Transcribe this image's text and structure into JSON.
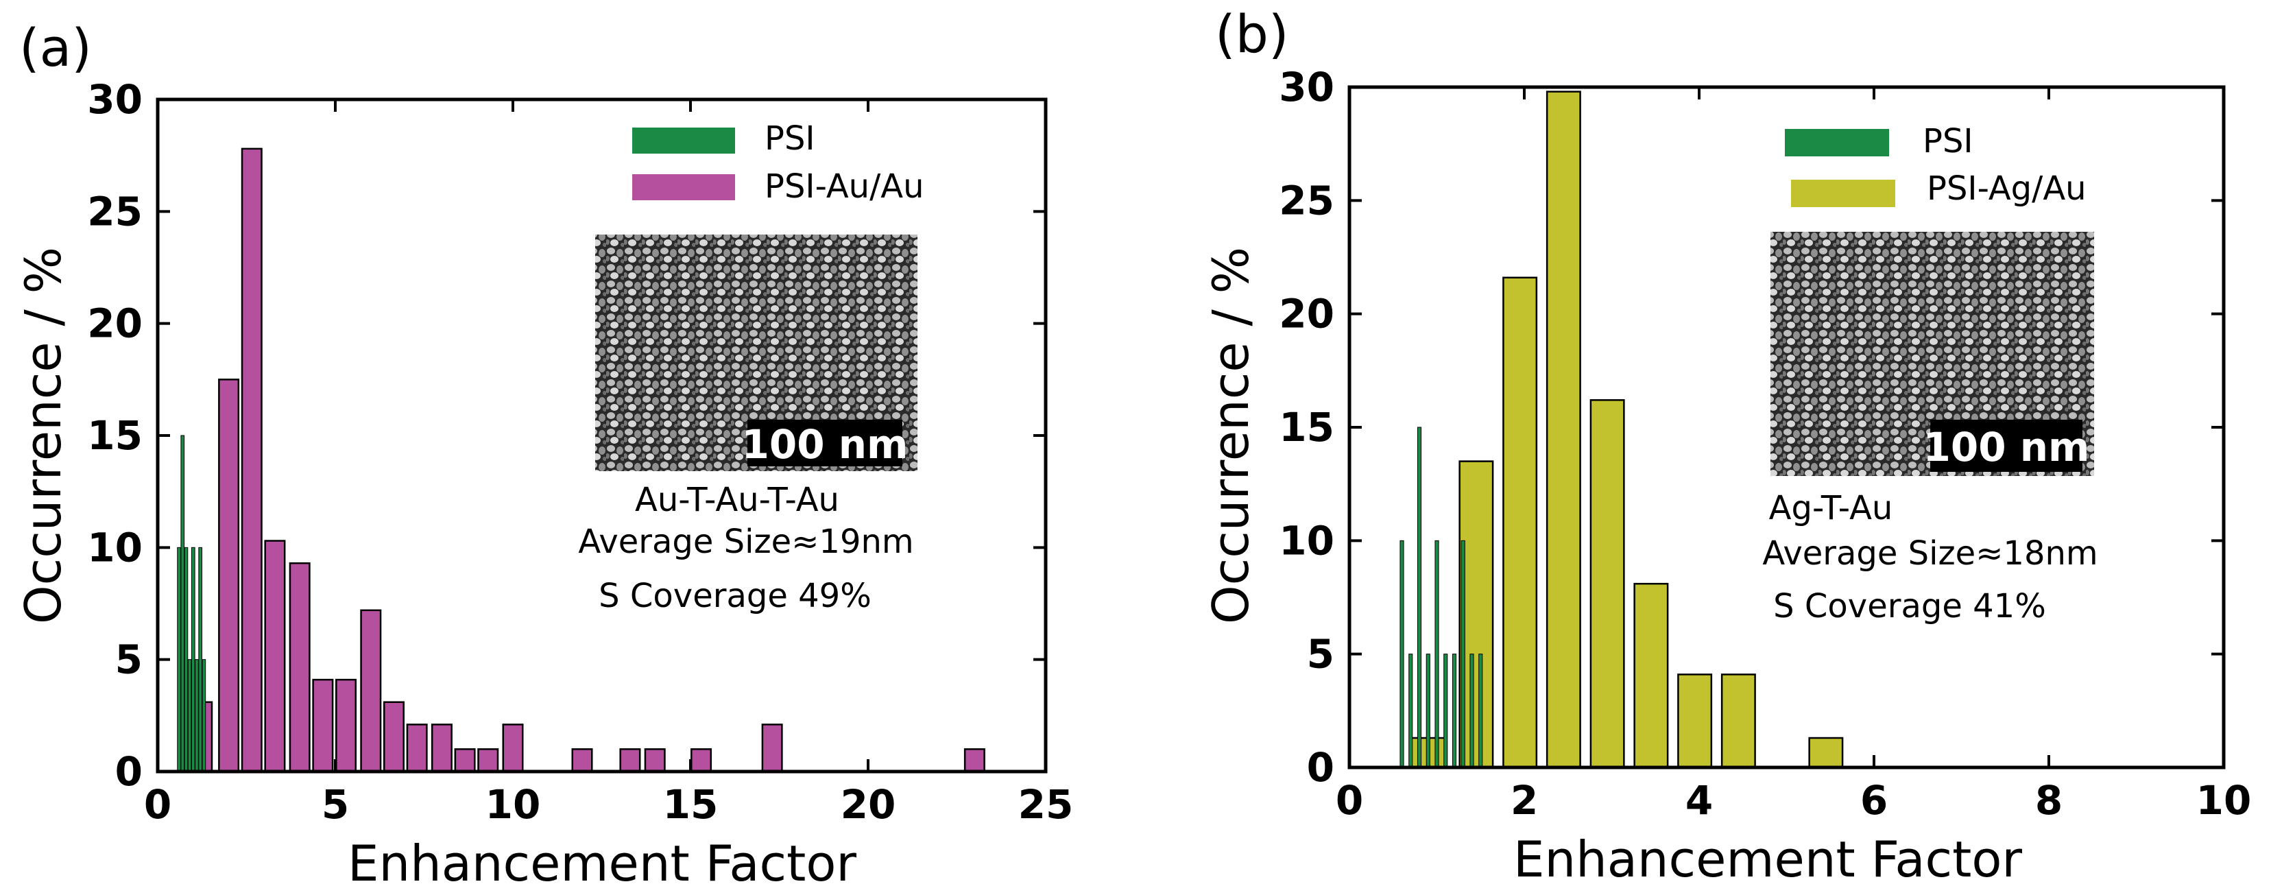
{
  "chart_data": [
    {
      "panel": "(a)",
      "type": "bar",
      "xlabel": "Enhancement Factor",
      "ylabel": "Occurrence / %",
      "xlim": [
        0,
        25
      ],
      "ylim": [
        0,
        30
      ],
      "xticks": [
        0,
        5,
        10,
        15,
        20,
        25
      ],
      "yticks": [
        0,
        5,
        10,
        15,
        20,
        25,
        30
      ],
      "legend_position": "top-right",
      "series": [
        {
          "name": "PSI",
          "color": "#1a8a44",
          "bar_width": 0.09,
          "x": [
            0.6,
            0.7,
            0.8,
            0.9,
            1.0,
            1.1,
            1.2,
            1.3
          ],
          "values": [
            10,
            15,
            10,
            5,
            10,
            5,
            10,
            5
          ]
        },
        {
          "name": "PSI-Au/Au",
          "color": "#b5509e",
          "bar_width": 0.55,
          "x": [
            1.25,
            2.0,
            2.65,
            3.3,
            4.0,
            4.65,
            5.3,
            6.0,
            6.65,
            7.3,
            8.0,
            8.65,
            9.3,
            10.0,
            11.95,
            13.3,
            14.0,
            15.3,
            17.3,
            23.0
          ],
          "values": [
            3.1,
            17.5,
            27.8,
            10.3,
            9.3,
            4.1,
            4.1,
            7.2,
            3.1,
            2.1,
            2.1,
            1.0,
            1.0,
            2.1,
            1.0,
            1.0,
            1.0,
            1.0,
            2.1,
            1.0
          ]
        }
      ],
      "inset": {
        "scale_bar_label": "100 nm",
        "lines": [
          "Au-T-Au-T-Au",
          "Average Size≈19nm",
          "S Coverage 49%"
        ]
      }
    },
    {
      "panel": "(b)",
      "type": "bar",
      "xlabel": "Enhancement Factor",
      "ylabel": "Occurrence / %",
      "xlim": [
        0,
        10
      ],
      "ylim": [
        0,
        30
      ],
      "xticks": [
        0,
        2,
        4,
        6,
        8,
        10
      ],
      "yticks": [
        0,
        5,
        10,
        15,
        20,
        25,
        30
      ],
      "legend_position": "top-right",
      "series": [
        {
          "name": "PSI",
          "color": "#1a8a44",
          "bar_width": 0.04,
          "x": [
            0.6,
            0.7,
            0.8,
            0.9,
            1.0,
            1.1,
            1.2,
            1.3,
            1.4,
            1.5
          ],
          "values": [
            10,
            5,
            15,
            5,
            10,
            5,
            5,
            10,
            5,
            5
          ]
        },
        {
          "name": "PSI-Ag/Au",
          "color": "#c2c22e",
          "bar_width": 0.38,
          "x": [
            0.9,
            1.45,
            1.95,
            2.45,
            2.95,
            3.45,
            3.95,
            4.45,
            5.45
          ],
          "values": [
            1.3,
            13.5,
            21.6,
            29.8,
            16.2,
            8.1,
            4.1,
            4.1,
            1.3
          ]
        }
      ],
      "inset": {
        "scale_bar_label": "100 nm",
        "lines": [
          "Ag-T-Au",
          "Average Size≈18nm",
          "S Coverage 41%"
        ]
      }
    }
  ]
}
